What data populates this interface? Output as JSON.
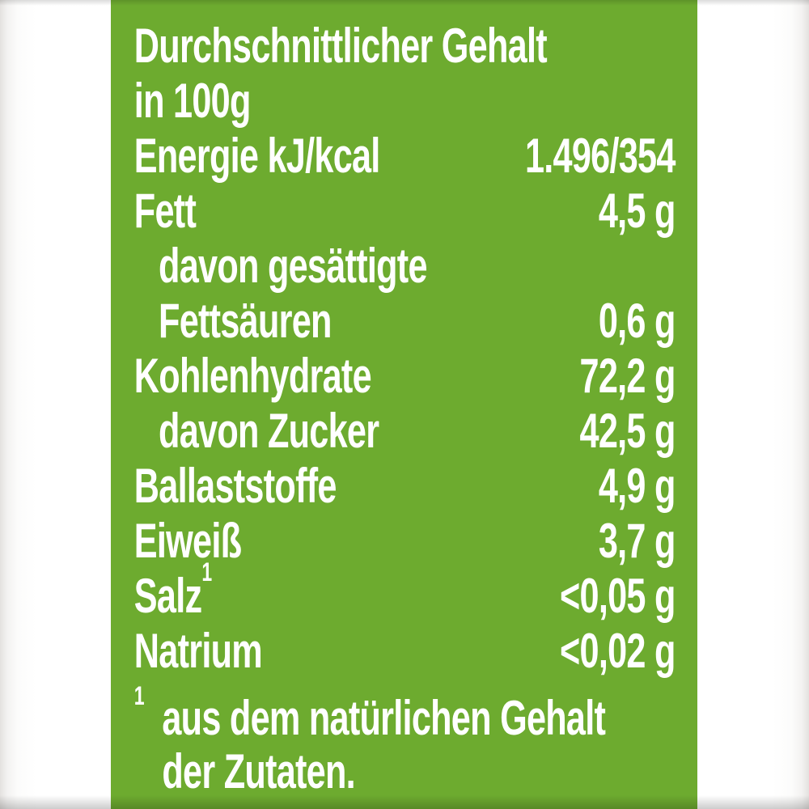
{
  "label": {
    "title_line1": "Durchschnittlicher Gehalt",
    "title_line2": "in 100g",
    "rows": [
      {
        "label": "Energie kJ/kcal",
        "value": "1.496/354"
      },
      {
        "label": "Fett",
        "value": "4,5 g"
      },
      {
        "label": "davon gesättigte",
        "value": ""
      },
      {
        "label": "Fettsäuren",
        "value": "0,6 g"
      },
      {
        "label": "Kohlenhydrate",
        "value": "72,2 g"
      },
      {
        "label": "davon Zucker",
        "value": "42,5 g"
      },
      {
        "label": "Ballaststoffe",
        "value": "4,9 g"
      },
      {
        "label": "Eiweiß",
        "value": "3,7 g"
      },
      {
        "label": "Salz",
        "sup": "1",
        "value": "<0,05 g"
      },
      {
        "label": "Natrium",
        "value": "<0,02 g"
      }
    ],
    "footnote": {
      "marker": "1",
      "line1": "aus dem natürlichen Gehalt",
      "line2": "der Zutaten."
    },
    "colors": {
      "panel_green": "#6dab2f",
      "text": "#ffffff",
      "margin_white": "#ffffff",
      "margin_edge_gray": "#e3e1df"
    }
  }
}
